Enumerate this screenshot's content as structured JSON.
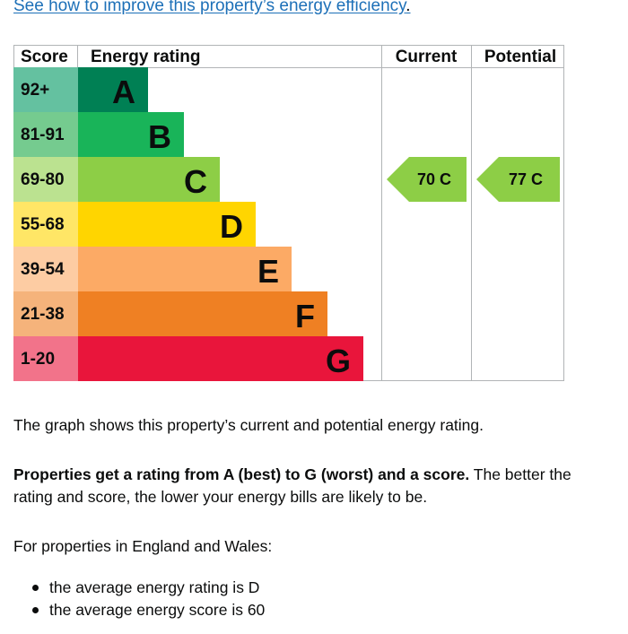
{
  "improve_link": "See how to improve this property’s energy efficiency",
  "improve_link_punct": ".",
  "chart_data": {
    "type": "table",
    "headers": {
      "score": "Score",
      "rating": "Energy rating",
      "current": "Current",
      "potential": "Potential"
    },
    "bands": [
      {
        "score": "92+",
        "letter": "A",
        "color": "#008054",
        "score_bg": "#64c1a0"
      },
      {
        "score": "81-91",
        "letter": "B",
        "color": "#19b459",
        "score_bg": "#75cb8f"
      },
      {
        "score": "69-80",
        "letter": "C",
        "color": "#8dce46",
        "score_bg": "#bbe290"
      },
      {
        "score": "55-68",
        "letter": "D",
        "color": "#ffd500",
        "score_bg": "#ffe666"
      },
      {
        "score": "39-54",
        "letter": "E",
        "color": "#fcaa65",
        "score_bg": "#fdcca3"
      },
      {
        "score": "21-38",
        "letter": "F",
        "color": "#ef8023",
        "score_bg": "#f5b37b"
      },
      {
        "score": "1-20",
        "letter": "G",
        "color": "#e9153b",
        "score_bg": "#f2738a"
      }
    ],
    "current": {
      "value": 70,
      "letter": "C",
      "label": "70  C",
      "color": "#8dce46"
    },
    "potential": {
      "value": 77,
      "letter": "C",
      "label": "77  C",
      "color": "#8dce46"
    }
  },
  "text": {
    "graph_caption": "The graph shows this property’s current and potential energy rating.",
    "bold_sentence": "Properties get a rating from A (best) to G (worst) and a score.",
    "rest_sentence": " The better the rating and score, the lower your energy bills are likely to be.",
    "region_intro": "For properties in England and Wales:",
    "bullets": [
      "the average energy rating is D",
      "the average energy score is 60"
    ]
  }
}
